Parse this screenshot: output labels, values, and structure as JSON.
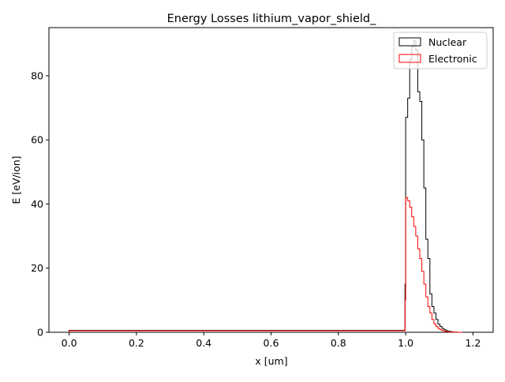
{
  "chart_data": {
    "type": "histogram-step",
    "title": "Energy Losses lithium_vapor_shield_",
    "xlabel": "x [um]",
    "ylabel": "E [eV/ion]",
    "xlim": [
      -0.06,
      1.26
    ],
    "ylim": [
      0,
      95
    ],
    "x_ticks": [
      0.0,
      0.2,
      0.4,
      0.6,
      0.8,
      1.0,
      1.2
    ],
    "x_tick_labels": [
      "0.0",
      "0.2",
      "0.4",
      "0.6",
      "0.8",
      "1.0",
      "1.2"
    ],
    "y_ticks": [
      0,
      20,
      40,
      60,
      80
    ],
    "y_tick_labels": [
      "0",
      "20",
      "40",
      "60",
      "80"
    ],
    "grid": false,
    "legend": {
      "position": "top-right",
      "entries": [
        "Nuclear",
        "Electronic"
      ]
    },
    "series": [
      {
        "name": "Nuclear",
        "color": "#000000",
        "baseline_x_range": [
          0.0,
          0.998
        ],
        "baseline_value": 0.6,
        "bin_edges": [
          0.998,
          1.0,
          1.006,
          1.012,
          1.018,
          1.024,
          1.03,
          1.036,
          1.042,
          1.048,
          1.054,
          1.06,
          1.066,
          1.072,
          1.078,
          1.084,
          1.09,
          1.096,
          1.102,
          1.108,
          1.114,
          1.12,
          1.126,
          1.132,
          1.138,
          1.144,
          1.15,
          1.156,
          1.162,
          1.168
        ],
        "values": [
          15,
          67,
          73,
          85,
          89,
          91,
          88,
          75,
          72,
          60,
          45,
          29,
          23,
          12,
          8,
          6,
          4,
          2.5,
          1.8,
          1.2,
          0.8,
          0.5,
          0.3,
          0.2,
          0.1,
          0.05,
          0.02,
          0.01,
          0
        ]
      },
      {
        "name": "Electronic",
        "color": "#ff0000",
        "baseline_x_range": [
          0.0,
          0.998
        ],
        "baseline_value": 0.5,
        "bin_edges": [
          0.998,
          1.0,
          1.006,
          1.012,
          1.018,
          1.024,
          1.03,
          1.036,
          1.042,
          1.048,
          1.054,
          1.06,
          1.066,
          1.072,
          1.078,
          1.084,
          1.09,
          1.096,
          1.102,
          1.108,
          1.114,
          1.12,
          1.126,
          1.132,
          1.138,
          1.144,
          1.15,
          1.156,
          1.162,
          1.168
        ],
        "values": [
          10,
          42,
          41,
          39,
          36,
          33,
          30,
          26,
          23,
          19,
          15,
          11,
          8,
          6,
          4,
          2.6,
          1.8,
          1.2,
          0.8,
          0.5,
          0.3,
          0.2,
          0.1,
          0.05,
          0.02,
          0.01,
          0,
          0,
          0
        ]
      }
    ]
  }
}
